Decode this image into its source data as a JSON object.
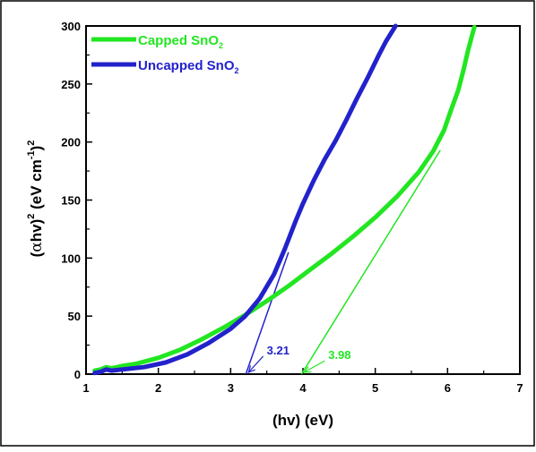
{
  "chart_data": {
    "type": "line",
    "xlabel": "(hv) (eV)",
    "ylabel": {
      "prefix": "(",
      "alpha": "α",
      "hv": "hv)",
      "sup": "2",
      "unit": " (eV cm",
      "unit_sup": "-1",
      "unit_close": ")",
      "unit_sup2": "2"
    },
    "xlim": [
      1,
      7
    ],
    "ylim": [
      0,
      300
    ],
    "xticks": [
      "1",
      "2",
      "3",
      "4",
      "5",
      "6",
      "7"
    ],
    "yticks": [
      "0",
      "50",
      "100",
      "150",
      "200",
      "250",
      "300"
    ],
    "grid": false,
    "legend_position": "top-left",
    "series": [
      {
        "name": "Capped SnO2",
        "label_main": "Capped SnO",
        "label_sub": "2",
        "color": "#22e622",
        "x": [
          1.12,
          1.2,
          1.28,
          1.35,
          1.5,
          1.7,
          2.0,
          2.3,
          2.6,
          2.9,
          3.2,
          3.5,
          3.8,
          4.1,
          4.4,
          4.7,
          5.0,
          5.3,
          5.6,
          5.8,
          5.95,
          6.05,
          6.15,
          6.22,
          6.28,
          6.33,
          6.37
        ],
        "values": [
          3,
          4,
          6,
          5,
          7,
          9,
          14,
          21,
          30,
          40,
          51,
          63,
          76,
          90,
          104,
          119,
          135,
          153,
          174,
          192,
          210,
          228,
          245,
          262,
          278,
          290,
          299
        ]
      },
      {
        "name": "Uncapped SnO2",
        "label_main": "Uncapped SnO",
        "label_sub": "2",
        "color": "#2222cc",
        "x": [
          1.12,
          1.2,
          1.28,
          1.35,
          1.5,
          1.8,
          2.1,
          2.4,
          2.7,
          3.0,
          3.2,
          3.4,
          3.6,
          3.75,
          3.9,
          4.0,
          4.15,
          4.3,
          4.45,
          4.6,
          4.75,
          4.9,
          5.05,
          5.15,
          5.28
        ],
        "values": [
          1,
          2,
          4,
          3,
          4,
          6,
          10,
          17,
          27,
          39,
          50,
          65,
          86,
          108,
          132,
          147,
          167,
          185,
          201,
          219,
          238,
          256,
          275,
          287,
          300
        ]
      }
    ],
    "annotations": [
      {
        "text": "3.21",
        "value": 3.21,
        "color": "#2222cc",
        "fit_line": {
          "x": [
            3.21,
            3.8
          ],
          "y": [
            0,
            105
          ]
        },
        "label_at": {
          "x": 3.5,
          "y": 17
        }
      },
      {
        "text": "3.98",
        "value": 3.98,
        "color": "#22e622",
        "fit_line": {
          "x": [
            3.98,
            5.9
          ],
          "y": [
            0,
            193
          ]
        },
        "label_at": {
          "x": 4.35,
          "y": 13
        }
      }
    ]
  }
}
